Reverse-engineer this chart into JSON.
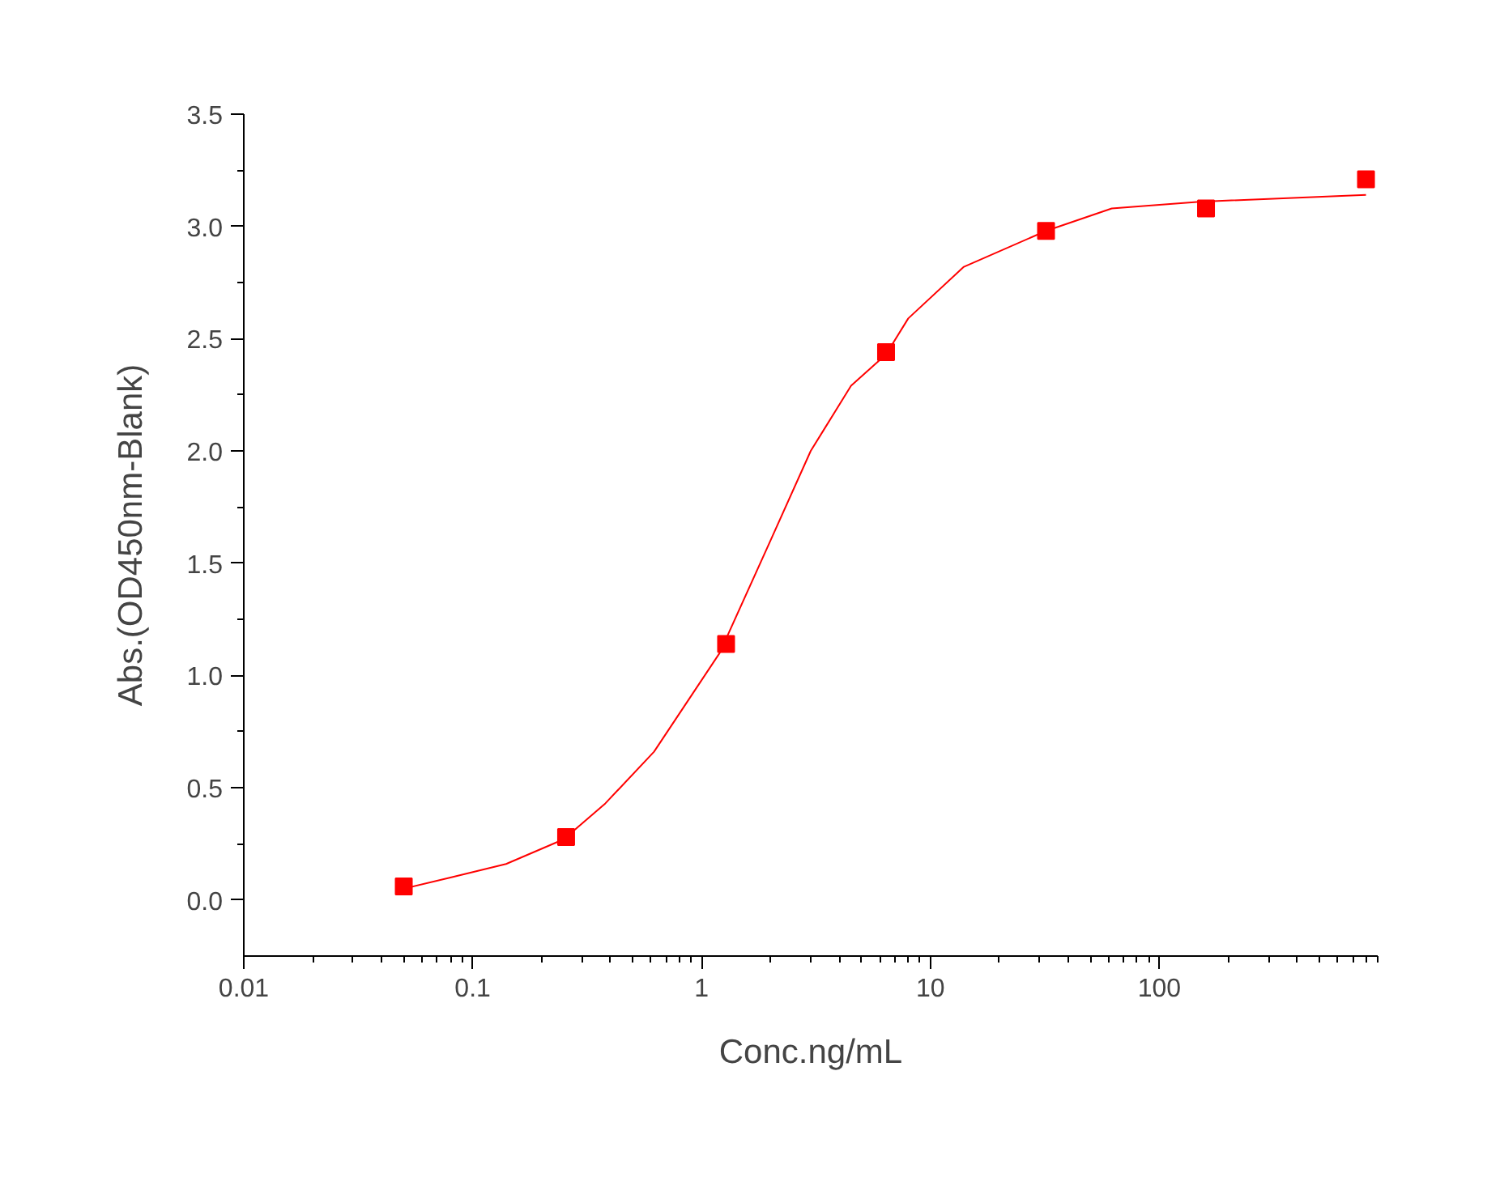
{
  "chart_data": {
    "type": "scatter",
    "xlabel": "Conc.ng/mL",
    "ylabel": "Abs.(OD450nm-Blank)",
    "log": "x",
    "xlim": [
      0.01,
      900
    ],
    "ylim": [
      -0.25,
      3.5
    ],
    "xticks": [
      0.01,
      0.1,
      1,
      10,
      100
    ],
    "yticks": [
      {
        "value": 0,
        "label": "0.0"
      },
      {
        "value": 0.5,
        "label": "0.5"
      },
      {
        "value": 1,
        "label": "1.0"
      },
      {
        "value": 1.5,
        "label": "1.5"
      },
      {
        "value": 2,
        "label": "2.0"
      },
      {
        "value": 2.5,
        "label": "2.5"
      },
      {
        "value": 3,
        "label": "3.0"
      },
      {
        "value": 3.5,
        "label": "3.5"
      }
    ],
    "series": [
      {
        "type": "line",
        "color": "#ff0000",
        "marker": "none",
        "line_style": "solid",
        "x": [
          0.05,
          0.08,
          0.14,
          0.25,
          0.38,
          0.62,
          1.2,
          2,
          3,
          4.5,
          6.4,
          8,
          14,
          32,
          62,
          150,
          800
        ],
        "values": [
          0.05,
          0.1,
          0.16,
          0.27,
          0.43,
          0.66,
          1.1,
          1.6,
          2.0,
          2.29,
          2.43,
          2.59,
          2.82,
          2.98,
          3.08,
          3.11,
          3.14
        ]
      },
      {
        "color": "#ff0000",
        "marker": "square",
        "x": [
          0.05,
          0.256,
          1.28,
          6.4,
          32,
          160,
          800
        ],
        "values": [
          0.06,
          0.28,
          1.14,
          2.44,
          2.98,
          3.08,
          3.21
        ]
      }
    ]
  }
}
